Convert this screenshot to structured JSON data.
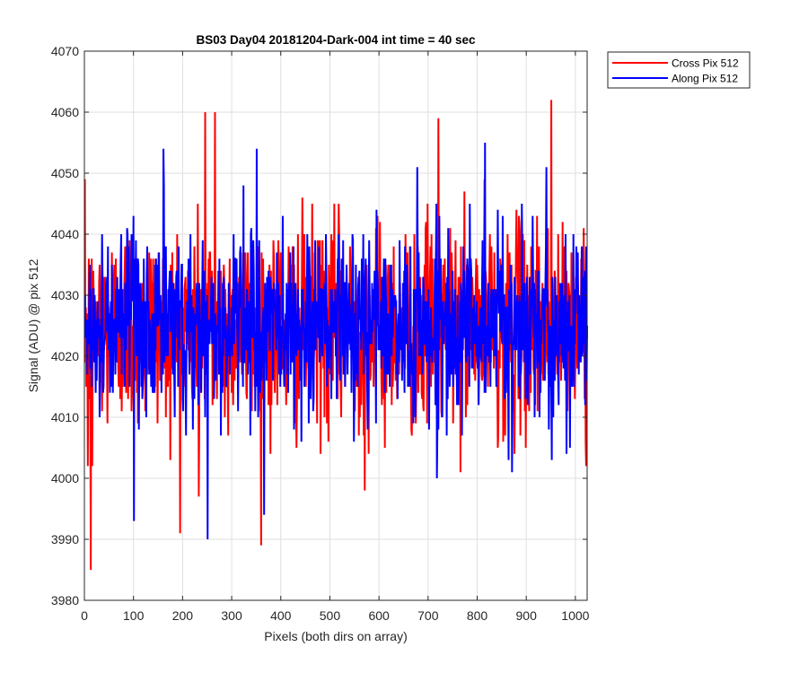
{
  "chart_data": {
    "type": "line",
    "title": "BS03 Day04 20181204-Dark-004 int time = 40 sec",
    "xlabel": "Pixels (both dirs on array)",
    "ylabel": "Signal (ADU) @ pix 512",
    "xlim": [
      0,
      1024
    ],
    "ylim": [
      3980,
      4070
    ],
    "xticks": [
      0,
      100,
      200,
      300,
      400,
      500,
      600,
      700,
      800,
      900,
      1000
    ],
    "yticks": [
      3980,
      3990,
      4000,
      4010,
      4020,
      4030,
      4040,
      4050,
      4060,
      4070
    ],
    "grid": true,
    "legend_location": "outside-top-right",
    "series": [
      {
        "name": "Cross Pix 512",
        "color": "#ff0000",
        "num_points": 1024,
        "mean": 4025,
        "std": 8.5,
        "noise": "random",
        "notable_points": [
          [
            6,
            4002
          ],
          [
            9,
            4013
          ],
          [
            12,
            3985
          ],
          [
            15,
            4002
          ],
          [
            20,
            4030
          ],
          [
            245,
            4060
          ],
          [
            265,
            4060
          ],
          [
            232,
            3997
          ],
          [
            570,
            3998
          ],
          [
            720,
            4059
          ],
          [
            950,
            4062
          ],
          [
            1020,
            4006
          ]
        ]
      },
      {
        "name": "Along Pix 512",
        "color": "#0000ff",
        "num_points": 1024,
        "mean": 4025,
        "std": 7.5,
        "noise": "random",
        "notable_points": [
          [
            100,
            3993
          ],
          [
            250,
            3990
          ],
          [
            365,
            3994
          ],
          [
            160,
            4054
          ],
          [
            350,
            4054
          ],
          [
            815,
            4055
          ],
          [
            870,
            4001
          ],
          [
            940,
            4051
          ]
        ]
      }
    ]
  }
}
